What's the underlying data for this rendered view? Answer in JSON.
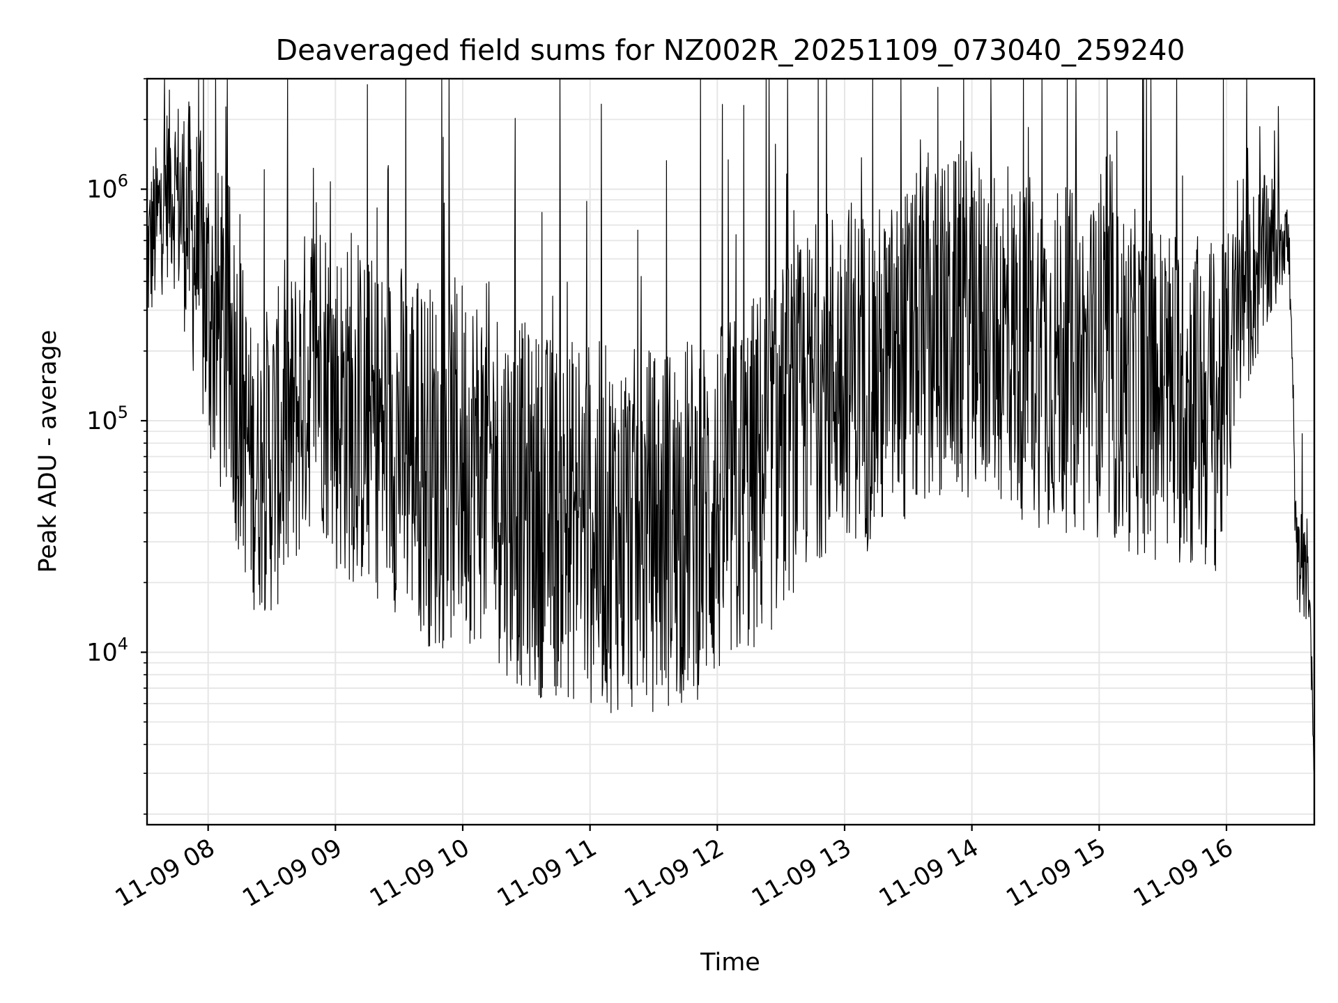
{
  "chart_data": {
    "type": "line",
    "title": "Deaveraged field sums for NZ002R_20251109_073040_259240",
    "xlabel": "Time",
    "ylabel": "Peak ADU - average",
    "yscale": "log",
    "ylim": [
      1800,
      3000000
    ],
    "xlim_hours": [
      7.52,
      16.69
    ],
    "grid": true,
    "colors": {
      "line": "#000000",
      "grid": "#e6e6e6",
      "axes": "#000000"
    },
    "x_ticks": [
      {
        "hour": 8,
        "label": "11-09 08"
      },
      {
        "hour": 9,
        "label": "11-09 09"
      },
      {
        "hour": 10,
        "label": "11-09 10"
      },
      {
        "hour": 11,
        "label": "11-09 11"
      },
      {
        "hour": 12,
        "label": "11-09 12"
      },
      {
        "hour": 13,
        "label": "11-09 13"
      },
      {
        "hour": 14,
        "label": "11-09 14"
      },
      {
        "hour": 15,
        "label": "11-09 15"
      },
      {
        "hour": 16,
        "label": "11-09 16"
      }
    ],
    "y_ticks": [
      {
        "value": 10000,
        "base": "10",
        "exp": "4"
      },
      {
        "value": 100000,
        "base": "10",
        "exp": "5"
      },
      {
        "value": 1000000,
        "base": "10",
        "exp": "6"
      }
    ],
    "series": [
      {
        "name": "Peak ADU - average",
        "envelope": {
          "x_hours": [
            7.52,
            7.7,
            7.85,
            8.0,
            8.2,
            8.35,
            8.5,
            8.65,
            8.85,
            9.0,
            9.2,
            9.4,
            9.6,
            9.8,
            10.0,
            10.2,
            10.4,
            10.6,
            10.8,
            11.0,
            11.2,
            11.4,
            11.6,
            11.8,
            12.0,
            12.2,
            12.4,
            12.6,
            12.8,
            13.0,
            13.2,
            13.4,
            13.6,
            13.8,
            14.0,
            14.2,
            14.4,
            14.6,
            14.8,
            15.0,
            15.2,
            15.4,
            15.6,
            15.8,
            15.95,
            16.1,
            16.25,
            16.4,
            16.45,
            16.48,
            16.5,
            16.55,
            16.6,
            16.65,
            16.69
          ],
          "baseline": [
            500000,
            1100000,
            700000,
            300000,
            180000,
            60000,
            70000,
            90000,
            200000,
            120000,
            100000,
            90000,
            80000,
            60000,
            70000,
            65000,
            45000,
            40000,
            38000,
            36000,
            34000,
            33000,
            35000,
            38000,
            42000,
            50000,
            70000,
            100000,
            140000,
            180000,
            150000,
            170000,
            220000,
            250000,
            260000,
            240000,
            200000,
            190000,
            180000,
            170000,
            150000,
            140000,
            130000,
            120000,
            110000,
            300000,
            450000,
            600000,
            700000,
            600000,
            400000,
            25000,
            22000,
            20000,
            3000
          ],
          "spread": [
            0.35,
            0.4,
            0.55,
            0.7,
            0.75,
            0.6,
            0.7,
            0.7,
            0.7,
            0.75,
            0.75,
            0.75,
            0.8,
            0.8,
            0.8,
            0.8,
            0.8,
            0.8,
            0.8,
            0.8,
            0.8,
            0.8,
            0.8,
            0.8,
            0.8,
            0.8,
            0.8,
            0.75,
            0.75,
            0.75,
            0.75,
            0.75,
            0.75,
            0.75,
            0.75,
            0.75,
            0.75,
            0.75,
            0.75,
            0.75,
            0.75,
            0.75,
            0.75,
            0.75,
            0.7,
            0.45,
            0.4,
            0.3,
            0.25,
            0.2,
            0.2,
            0.2,
            0.2,
            0.2,
            0.05
          ]
        }
      }
    ]
  }
}
